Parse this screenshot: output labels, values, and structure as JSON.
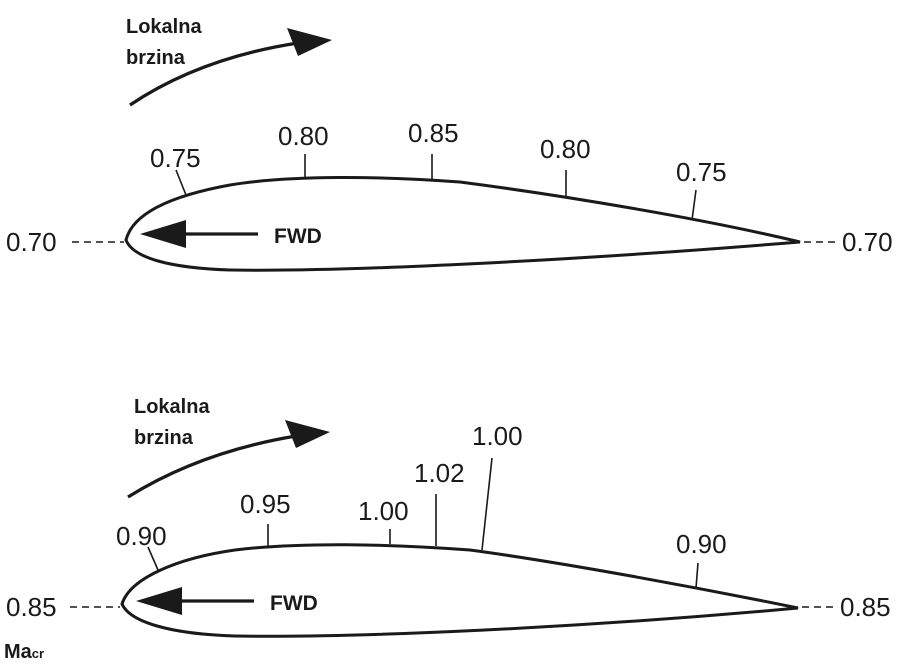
{
  "top": {
    "flow_label_line1": "Lokalna",
    "flow_label_line2": "brzina",
    "fwd_label": "FWD",
    "left_value": "0.70",
    "right_value": "0.70",
    "ticks": [
      "0.75",
      "0.80",
      "0.85",
      "0.80",
      "0.75"
    ]
  },
  "bottom": {
    "flow_label_line1": "Lokalna",
    "flow_label_line2": "brzina",
    "fwd_label": "FWD",
    "left_value": "0.85",
    "right_value": "0.85",
    "ticks": [
      "0.90",
      "0.95",
      "1.00",
      "1.02",
      "1.00",
      "0.90"
    ]
  },
  "footer": {
    "ma_main": "Ma",
    "ma_sub": "cr"
  }
}
